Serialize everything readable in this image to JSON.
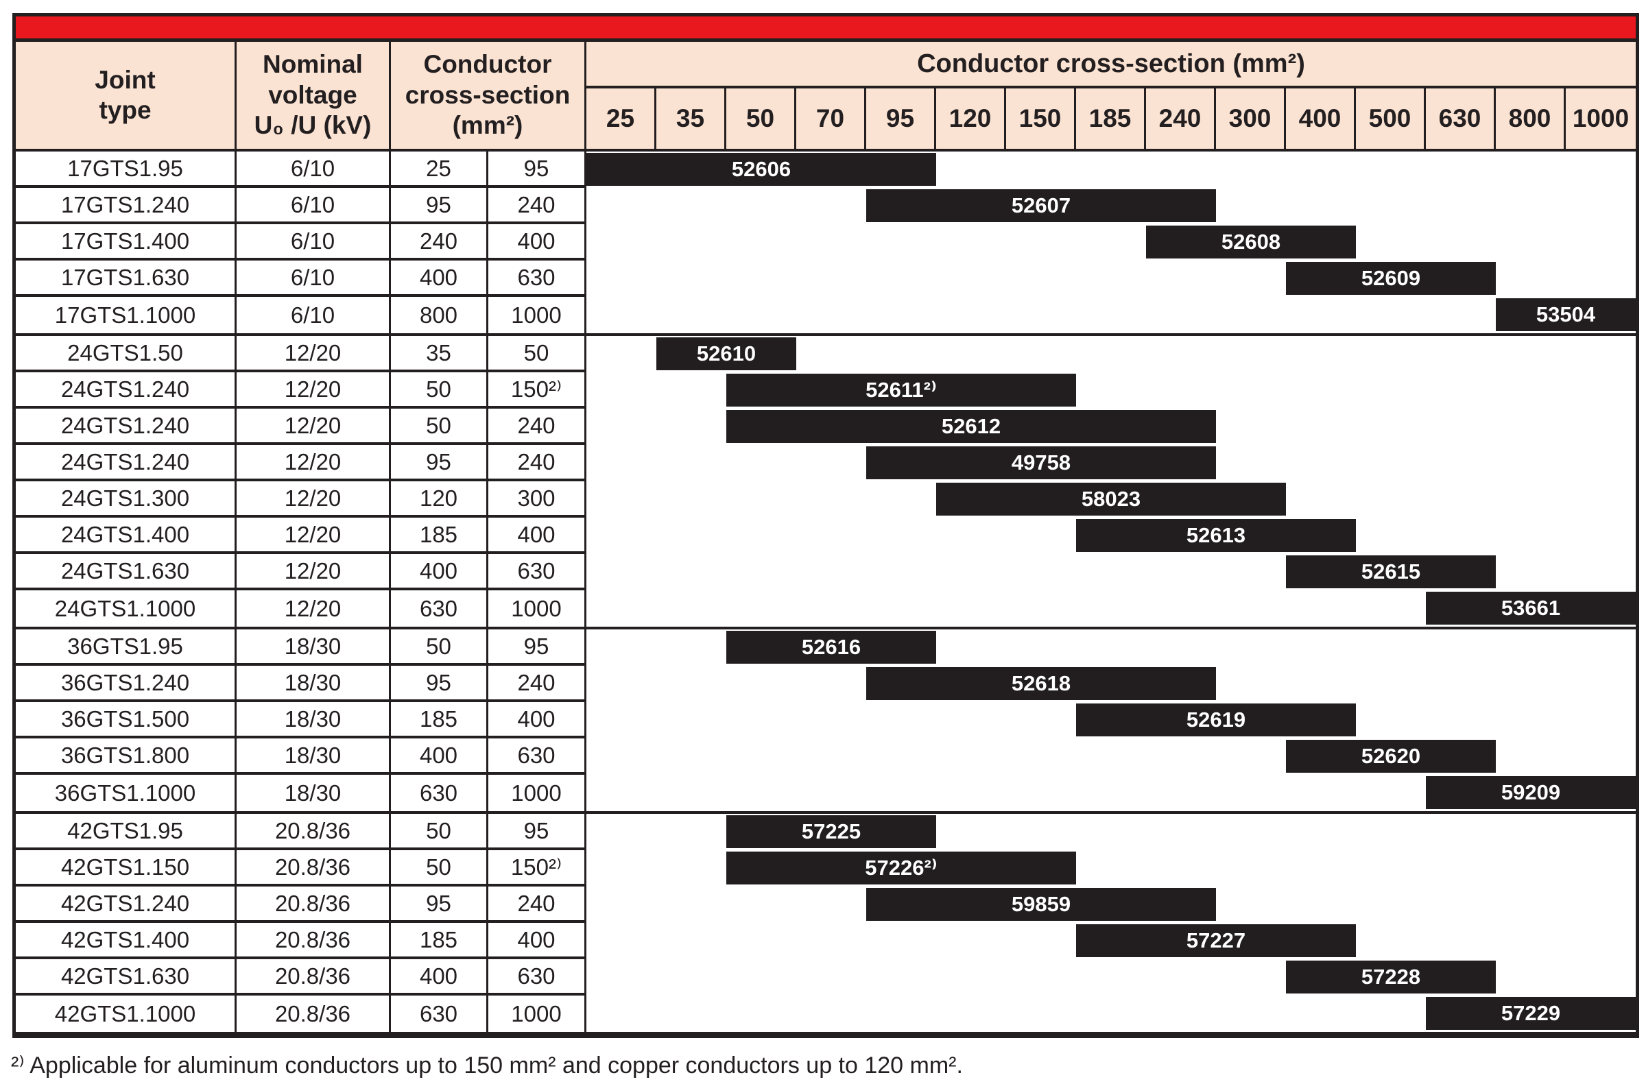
{
  "header": {
    "joint_type": "Joint\ntype",
    "nominal_voltage": "Nominal\nvoltage\nU₀ /U (kV)",
    "conductor_cross_section": "Conductor\ncross-section\n(mm²)",
    "conductor_cross_section_wide": "Conductor cross-section (mm²)"
  },
  "columns": {
    "sizes": [
      25,
      35,
      50,
      70,
      95,
      120,
      150,
      185,
      240,
      300,
      400,
      500,
      630,
      800,
      1000
    ]
  },
  "colors": {
    "accent_red": "#e8181e",
    "header_peach": "#fbe3d3",
    "bar_black": "#221e1f",
    "border_black": "#231f20"
  },
  "table": {
    "groups": [
      {
        "rows": [
          {
            "joint": "17GTS1.95",
            "voltage": "6/10",
            "cs_from": "25",
            "cs_to": "95",
            "span": [
              25,
              95
            ],
            "bar": "52606"
          },
          {
            "joint": "17GTS1.240",
            "voltage": "6/10",
            "cs_from": "95",
            "cs_to": "240",
            "span": [
              95,
              240
            ],
            "bar": "52607"
          },
          {
            "joint": "17GTS1.400",
            "voltage": "6/10",
            "cs_from": "240",
            "cs_to": "400",
            "span": [
              240,
              400
            ],
            "bar": "52608"
          },
          {
            "joint": "17GTS1.630",
            "voltage": "6/10",
            "cs_from": "400",
            "cs_to": "630",
            "span": [
              400,
              630
            ],
            "bar": "52609"
          },
          {
            "joint": "17GTS1.1000",
            "voltage": "6/10",
            "cs_from": "800",
            "cs_to": "1000",
            "span": [
              800,
              1000
            ],
            "bar": "53504"
          }
        ]
      },
      {
        "rows": [
          {
            "joint": "24GTS1.50",
            "voltage": "12/20",
            "cs_from": "35",
            "cs_to": "50",
            "span": [
              35,
              50
            ],
            "bar": "52610"
          },
          {
            "joint": "24GTS1.240",
            "voltage": "12/20",
            "cs_from": "50",
            "cs_to": "150²⁾",
            "span": [
              50,
              150
            ],
            "bar": "52611²⁾"
          },
          {
            "joint": "24GTS1.240",
            "voltage": "12/20",
            "cs_from": "50",
            "cs_to": "240",
            "span": [
              50,
              240
            ],
            "bar": "52612"
          },
          {
            "joint": "24GTS1.240",
            "voltage": "12/20",
            "cs_from": "95",
            "cs_to": "240",
            "span": [
              95,
              240
            ],
            "bar": "49758"
          },
          {
            "joint": "24GTS1.300",
            "voltage": "12/20",
            "cs_from": "120",
            "cs_to": "300",
            "span": [
              120,
              300
            ],
            "bar": "58023"
          },
          {
            "joint": "24GTS1.400",
            "voltage": "12/20",
            "cs_from": "185",
            "cs_to": "400",
            "span": [
              185,
              400
            ],
            "bar": "52613"
          },
          {
            "joint": "24GTS1.630",
            "voltage": "12/20",
            "cs_from": "400",
            "cs_to": "630",
            "span": [
              400,
              630
            ],
            "bar": "52615"
          },
          {
            "joint": "24GTS1.1000",
            "voltage": "12/20",
            "cs_from": "630",
            "cs_to": "1000",
            "span": [
              630,
              1000
            ],
            "bar": "53661"
          }
        ]
      },
      {
        "rows": [
          {
            "joint": "36GTS1.95",
            "voltage": "18/30",
            "cs_from": "50",
            "cs_to": "95",
            "span": [
              50,
              95
            ],
            "bar": "52616"
          },
          {
            "joint": "36GTS1.240",
            "voltage": "18/30",
            "cs_from": "95",
            "cs_to": "240",
            "span": [
              95,
              240
            ],
            "bar": "52618"
          },
          {
            "joint": "36GTS1.500",
            "voltage": "18/30",
            "cs_from": "185",
            "cs_to": "400",
            "span": [
              185,
              400
            ],
            "bar": "52619"
          },
          {
            "joint": "36GTS1.800",
            "voltage": "18/30",
            "cs_from": "400",
            "cs_to": "630",
            "span": [
              400,
              630
            ],
            "bar": "52620"
          },
          {
            "joint": "36GTS1.1000",
            "voltage": "18/30",
            "cs_from": "630",
            "cs_to": "1000",
            "span": [
              630,
              1000
            ],
            "bar": "59209"
          }
        ]
      },
      {
        "rows": [
          {
            "joint": "42GTS1.95",
            "voltage": "20.8/36",
            "cs_from": "50",
            "cs_to": "95",
            "span": [
              50,
              95
            ],
            "bar": "57225"
          },
          {
            "joint": "42GTS1.150",
            "voltage": "20.8/36",
            "cs_from": "50",
            "cs_to": "150²⁾",
            "span": [
              50,
              150
            ],
            "bar": "57226²⁾"
          },
          {
            "joint": "42GTS1.240",
            "voltage": "20.8/36",
            "cs_from": "95",
            "cs_to": "240",
            "span": [
              95,
              240
            ],
            "bar": "59859"
          },
          {
            "joint": "42GTS1.400",
            "voltage": "20.8/36",
            "cs_from": "185",
            "cs_to": "400",
            "span": [
              185,
              400
            ],
            "bar": "57227"
          },
          {
            "joint": "42GTS1.630",
            "voltage": "20.8/36",
            "cs_from": "400",
            "cs_to": "630",
            "span": [
              400,
              630
            ],
            "bar": "57228"
          },
          {
            "joint": "42GTS1.1000",
            "voltage": "20.8/36",
            "cs_from": "630",
            "cs_to": "1000",
            "span": [
              630,
              1000
            ],
            "bar": "57229"
          }
        ]
      }
    ]
  },
  "page": {
    "footnote": "²⁾ Applicable for aluminum conductors up to 150 mm² and copper conductors up to 120 mm²."
  }
}
